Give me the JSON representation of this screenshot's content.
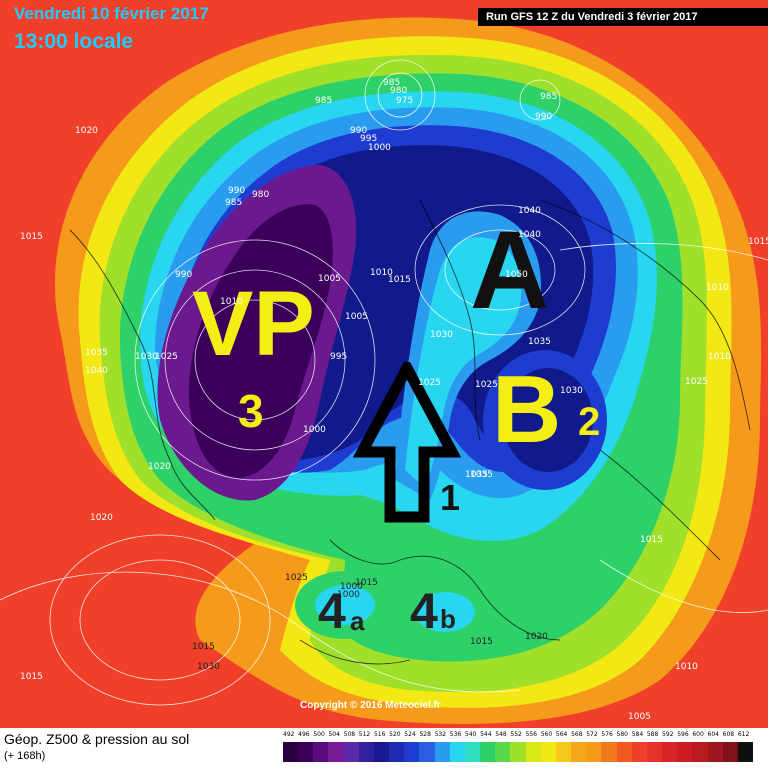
{
  "header": {
    "date": "Vendredi 10 février 2017",
    "time": "13:00 locale",
    "run": "Run GFS 12 Z du Vendredi 3 février 2017"
  },
  "annotations": {
    "vp": "VP",
    "vp_num": "3",
    "a": "A",
    "b": "B",
    "b_num": "2",
    "arrow_num": "1",
    "a4": "4",
    "a4_sub": "a",
    "b4": "4",
    "b4_sub": "b"
  },
  "pressure_labels": [
    "1015",
    "1020",
    "1015",
    "1035",
    "1040",
    "1030",
    "1025",
    "990",
    "1010",
    "990",
    "985",
    "980",
    "985",
    "990",
    "995",
    "1000",
    "985",
    "980",
    "975",
    "985",
    "990",
    "1010",
    "1015",
    "1005",
    "995",
    "1000",
    "1005",
    "1040",
    "1050",
    "1035",
    "1030",
    "1025",
    "1020",
    "1025",
    "1035",
    "1030",
    "1040",
    "1010",
    "1010",
    "1025",
    "1035",
    "1030",
    "1015",
    "1020",
    "1015",
    "1005",
    "1010",
    "1020",
    "1015",
    "1025",
    "1000",
    "1015",
    "1000",
    "1015"
  ],
  "copyright": "Copyright © 2016 Meteociel.fr",
  "footer": {
    "title": "Géop. Z500 & pression au sol",
    "subtitle": "(+ 168h)"
  },
  "colors": {
    "deep_purple": "#3a005a",
    "purple": "#6a1a8e",
    "navy": "#101a8a",
    "blue": "#1e3cd0",
    "sky": "#2a9cf0",
    "cyan": "#28d6f0",
    "green": "#2ed06a",
    "lime": "#a0e02a",
    "yellow": "#f2e814",
    "orange": "#f59a1a",
    "red": "#f0402a"
  },
  "scale": {
    "labels": [
      "492",
      "496",
      "500",
      "504",
      "508",
      "512",
      "516",
      "520",
      "524",
      "528",
      "532",
      "536",
      "540",
      "544",
      "548",
      "552",
      "556",
      "560",
      "564",
      "568",
      "572",
      "576",
      "580",
      "584",
      "588",
      "592",
      "596",
      "600",
      "604",
      "608",
      "612"
    ],
    "colors": [
      "#2a0040",
      "#3a005a",
      "#5a0a7a",
      "#7a1a98",
      "#5a2aa8",
      "#3020a0",
      "#1a1a90",
      "#1e2ab0",
      "#1e3cd0",
      "#2a60e0",
      "#2a9cf0",
      "#28d6f0",
      "#2ee0c0",
      "#2ed06a",
      "#5ad84a",
      "#a0e02a",
      "#d8e81a",
      "#f2e814",
      "#f5c81a",
      "#f5a81a",
      "#f59a1a",
      "#f07a1a",
      "#f05a22",
      "#f0402a",
      "#e83028",
      "#d82424",
      "#c81e22",
      "#b81a20",
      "#a0161e",
      "#80101a",
      "#101010"
    ]
  }
}
